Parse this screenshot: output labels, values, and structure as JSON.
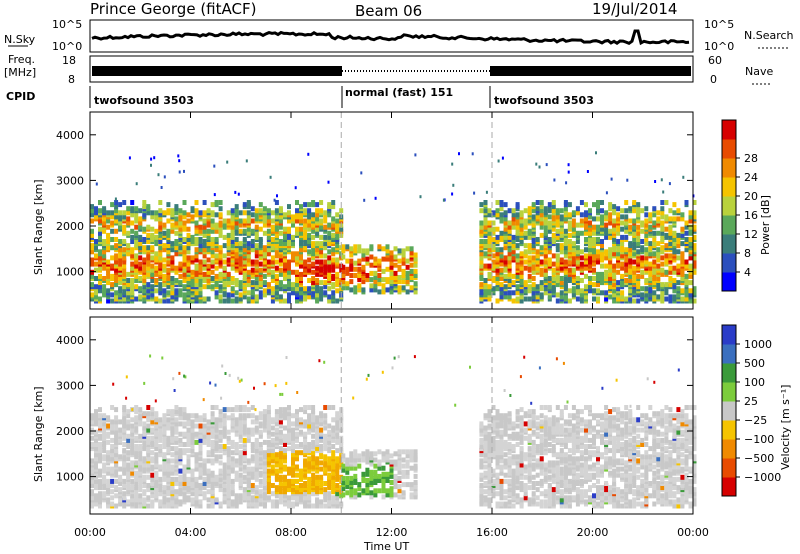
{
  "header": {
    "station": "Prince George (fitACF)",
    "beam": "Beam 06",
    "date": "19/Jul/2014"
  },
  "top_panels": {
    "nsky_label": "N.Sky",
    "nsky_top": "10^5",
    "nsky_bottom": "10^0",
    "nsearch_label": "N.Search",
    "nsearch_top": "10^5",
    "nsearch_bottom": "10^0",
    "freq_label": "Freq.",
    "freq_unit": "[MHz]",
    "freq_top": "18",
    "freq_bottom": "8",
    "nave_label": "Nave",
    "nave_top": "60",
    "nave_bottom": "0",
    "cpid_label": "CPID",
    "cpid_segments": [
      "twofsound 3503",
      "normal (fast) 151",
      "twofsound 3503"
    ]
  },
  "chart_data": [
    {
      "type": "heatmap",
      "name": "power",
      "ylabel": "Slant Range [km]",
      "xlabel": "",
      "x_ticks": [
        "00:00",
        "04:00",
        "08:00",
        "12:00",
        "16:00",
        "20:00",
        "00:00"
      ],
      "y_ticks": [
        1000,
        2000,
        3000,
        4000
      ],
      "ylim": [
        180,
        4500
      ],
      "xlim_hours": [
        0,
        24
      ],
      "mode_boundaries_hours": [
        10,
        16
      ],
      "colorbar": {
        "label": "Power [dB]",
        "ticks": [
          "4",
          "8",
          "12",
          "16",
          "20",
          "24",
          "28"
        ],
        "colors": [
          "#0000ff",
          "#2b4fbd",
          "#3a7d7a",
          "#5aa85a",
          "#b9d23c",
          "#f5c400",
          "#f08a00",
          "#e84b00",
          "#d60000"
        ]
      },
      "echo_regions": [
        {
          "start_hour": 0.0,
          "end_hour": 10.0,
          "range_min_km": 300,
          "range_max_km": 2500
        },
        {
          "start_hour": 10.0,
          "end_hour": 13.0,
          "range_min_km": 500,
          "range_max_km": 1500
        },
        {
          "start_hour": 15.5,
          "end_hour": 24.0,
          "range_min_km": 300,
          "range_max_km": 2500
        }
      ]
    },
    {
      "type": "heatmap",
      "name": "velocity",
      "ylabel": "Slant Range [km]",
      "xlabel": "Time UT",
      "x_ticks": [
        "00:00",
        "04:00",
        "08:00",
        "12:00",
        "16:00",
        "20:00",
        "00:00"
      ],
      "y_ticks": [
        1000,
        2000,
        3000,
        4000
      ],
      "ylim": [
        180,
        4500
      ],
      "xlim_hours": [
        0,
        24
      ],
      "mode_boundaries_hours": [
        10,
        16
      ],
      "colorbar": {
        "label": "Velocity [m s⁻¹]",
        "ticks": [
          "1000",
          "500",
          "100",
          "25",
          "−25",
          "−100",
          "−500",
          "−1000"
        ],
        "colors": [
          "#2a3cc8",
          "#3a6fbf",
          "#3a9a3a",
          "#7ccc3c",
          "#c8c8c8",
          "#f5c400",
          "#f08a00",
          "#e84b00",
          "#d60000"
        ]
      }
    }
  ]
}
